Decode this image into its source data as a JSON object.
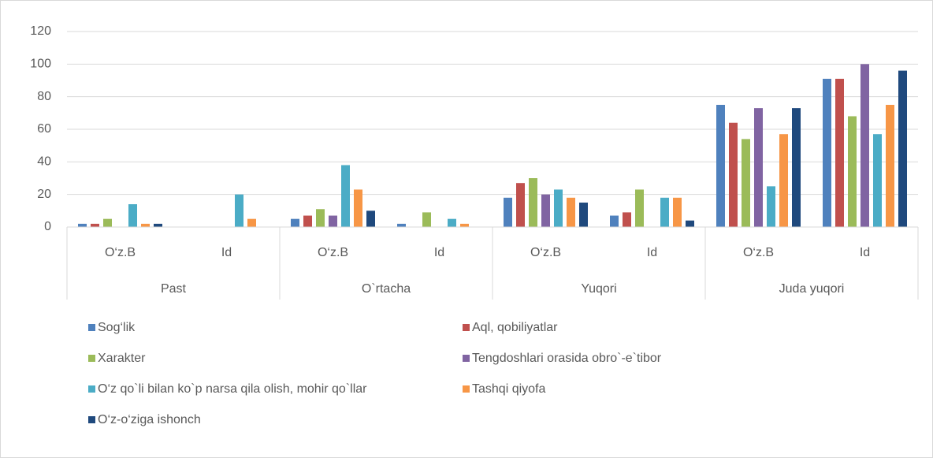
{
  "chart_data": {
    "type": "bar",
    "categories": [
      "O‘z.B",
      "Id",
      "O‘z.B",
      "Id",
      "O‘z.B",
      "Id",
      "O‘z.B",
      "Id"
    ],
    "category_groups": [
      "Past",
      "O`rtacha",
      "Yuqori",
      "Juda yuqori"
    ],
    "series": [
      {
        "name": "Sog‘lik",
        "color": "#4f81bd",
        "values": [
          2,
          0,
          5,
          2,
          18,
          7,
          75,
          91
        ]
      },
      {
        "name": "Aql, qobiliyatlar",
        "color": "#c0504d",
        "values": [
          2,
          0,
          7,
          0,
          27,
          9,
          64,
          91
        ]
      },
      {
        "name": "Xarakter",
        "color": "#9bbb59",
        "values": [
          5,
          0,
          11,
          9,
          30,
          23,
          54,
          68
        ]
      },
      {
        "name": "Tengdoshlari orasida obro`-e`tibor",
        "color": "#8064a2",
        "values": [
          0,
          0,
          7,
          0,
          20,
          0,
          73,
          100
        ]
      },
      {
        "name": "O‘z qo`li bilan ko`p narsa qila olish, mohir qo`llar",
        "color": "#4bacc6",
        "values": [
          14,
          20,
          38,
          5,
          23,
          18,
          25,
          57
        ]
      },
      {
        "name": "Tashqi qiyofa",
        "color": "#f79646",
        "values": [
          2,
          5,
          23,
          2,
          18,
          18,
          57,
          75
        ]
      },
      {
        "name": "O‘z-o‘ziga ishonch",
        "color": "#1f497d",
        "values": [
          2,
          0,
          10,
          0,
          15,
          4,
          73,
          96
        ]
      }
    ],
    "ylim": [
      0,
      120
    ],
    "yticks": [
      0,
      20,
      40,
      60,
      80,
      100,
      120
    ],
    "grid": true,
    "legend": "bottom"
  }
}
